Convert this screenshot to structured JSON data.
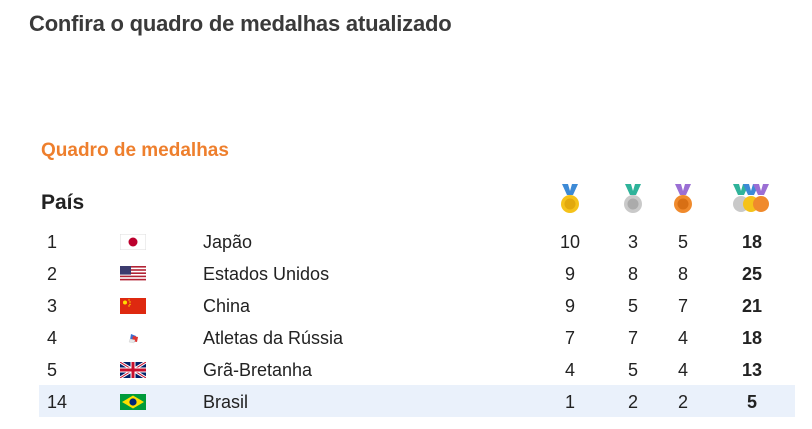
{
  "headline": "Confira o quadro de medalhas atualizado",
  "widget": {
    "title": "Quadro de medalhas",
    "column_header": "País",
    "medal_icons": {
      "gold": "gold-medal-icon",
      "silver": "silver-medal-icon",
      "bronze": "bronze-medal-icon",
      "total": "total-medals-icon"
    },
    "colors": {
      "title": "#ee7f2d",
      "highlight_row": "#eaf1fb"
    },
    "rows": [
      {
        "rank": "1",
        "flag": "japan-flag-icon",
        "country": "Japão",
        "gold": "10",
        "silver": "3",
        "bronze": "5",
        "total": "18"
      },
      {
        "rank": "2",
        "flag": "usa-flag-icon",
        "country": "Estados Unidos",
        "gold": "9",
        "silver": "8",
        "bronze": "8",
        "total": "25"
      },
      {
        "rank": "3",
        "flag": "china-flag-icon",
        "country": "China",
        "gold": "9",
        "silver": "5",
        "bronze": "7",
        "total": "21"
      },
      {
        "rank": "4",
        "flag": "roc-flag-icon",
        "country": "Atletas da Rússia",
        "gold": "7",
        "silver": "7",
        "bronze": "4",
        "total": "18"
      },
      {
        "rank": "5",
        "flag": "uk-flag-icon",
        "country": "Grã-Bretanha",
        "gold": "4",
        "silver": "5",
        "bronze": "4",
        "total": "13"
      },
      {
        "rank": "14",
        "flag": "brazil-flag-icon",
        "country": "Brasil",
        "gold": "1",
        "silver": "2",
        "bronze": "2",
        "total": "5"
      }
    ]
  }
}
